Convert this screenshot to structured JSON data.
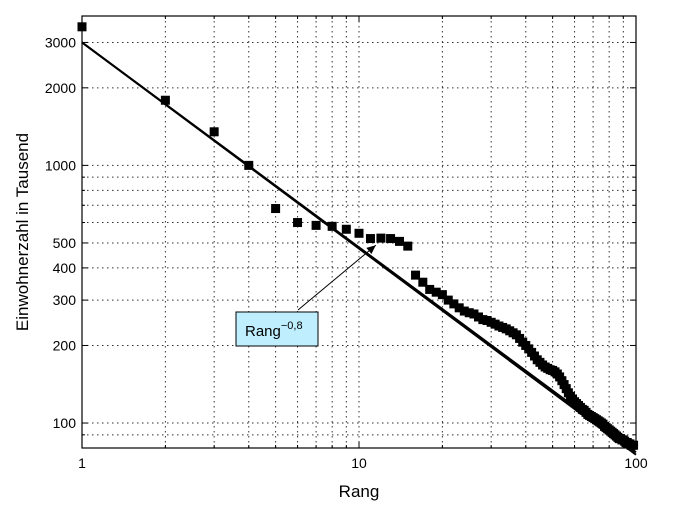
{
  "chart_data": {
    "type": "scatter",
    "title": "",
    "xlabel": "Rang",
    "ylabel": "Einwohnerzahl in Tausend",
    "x_scale": "log",
    "y_scale": "log",
    "xlim": [
      1,
      100
    ],
    "ylim": [
      80,
      3800
    ],
    "grid": true,
    "x_ticks": [
      1,
      10,
      100
    ],
    "x_tick_labels": [
      "1",
      "10",
      "100"
    ],
    "y_ticks": [
      100,
      200,
      300,
      400,
      500,
      1000,
      2000,
      3000
    ],
    "y_tick_labels": [
      "100",
      "200",
      "300",
      "400",
      "500",
      "1000",
      "2000",
      "3000"
    ],
    "series": [
      {
        "marker": "square",
        "color": "#000000",
        "points": [
          [
            1,
            3450
          ],
          [
            2,
            1790
          ],
          [
            3,
            1350
          ],
          [
            4,
            1000
          ],
          [
            5,
            680
          ],
          [
            6,
            600
          ],
          [
            7,
            585
          ],
          [
            8,
            580
          ],
          [
            9,
            565
          ],
          [
            10,
            545
          ],
          [
            11,
            520
          ],
          [
            12,
            522
          ],
          [
            13,
            520
          ],
          [
            14,
            507
          ],
          [
            15,
            486
          ],
          [
            16,
            375
          ],
          [
            17,
            352
          ],
          [
            18,
            330
          ],
          [
            19,
            322
          ],
          [
            20,
            315
          ],
          [
            21,
            300
          ],
          [
            22,
            290
          ],
          [
            23,
            280
          ],
          [
            24,
            272
          ],
          [
            25,
            268
          ],
          [
            26,
            265
          ],
          [
            27,
            258
          ],
          [
            28,
            252
          ],
          [
            29,
            250
          ],
          [
            30,
            246
          ],
          [
            31,
            242
          ],
          [
            32,
            238
          ],
          [
            33,
            235
          ],
          [
            34,
            232
          ],
          [
            35,
            228
          ],
          [
            36,
            224
          ],
          [
            37,
            220
          ],
          [
            38,
            213
          ],
          [
            39,
            206
          ],
          [
            40,
            200
          ],
          [
            41,
            194
          ],
          [
            42,
            188
          ],
          [
            43,
            182
          ],
          [
            44,
            176
          ],
          [
            45,
            172
          ],
          [
            46,
            168
          ],
          [
            47,
            165
          ],
          [
            48,
            163
          ],
          [
            49,
            161
          ],
          [
            50,
            160
          ],
          [
            51,
            158
          ],
          [
            52,
            155
          ],
          [
            53,
            151
          ],
          [
            54,
            146
          ],
          [
            55,
            141
          ],
          [
            56,
            136
          ],
          [
            57,
            131
          ],
          [
            58,
            127
          ],
          [
            59,
            124
          ],
          [
            60,
            121
          ],
          [
            61,
            119
          ],
          [
            62,
            117
          ],
          [
            63,
            115
          ],
          [
            64,
            113
          ],
          [
            65,
            112
          ],
          [
            66,
            110
          ],
          [
            67,
            108
          ],
          [
            68,
            107
          ],
          [
            69,
            106
          ],
          [
            70,
            105
          ],
          [
            71,
            104
          ],
          [
            72,
            103
          ],
          [
            73,
            102
          ],
          [
            74,
            101
          ],
          [
            75,
            100
          ],
          [
            76,
            99
          ],
          [
            77,
            97
          ],
          [
            78,
            96
          ],
          [
            79,
            95
          ],
          [
            80,
            94
          ],
          [
            81,
            93
          ],
          [
            82,
            92
          ],
          [
            83,
            91
          ],
          [
            84,
            90
          ],
          [
            85,
            89
          ],
          [
            86,
            88
          ],
          [
            87,
            87
          ],
          [
            88,
            87
          ],
          [
            89,
            86
          ],
          [
            90,
            86
          ],
          [
            91,
            85
          ],
          [
            92,
            84
          ],
          [
            93,
            84
          ],
          [
            94,
            83
          ],
          [
            95,
            83
          ],
          [
            96,
            82
          ],
          [
            97,
            82
          ],
          [
            98,
            82
          ]
        ]
      }
    ],
    "fit_lines": [
      {
        "formula": "3000 * Rang^-0.8",
        "coefficient": 3000,
        "exponent": -0.8,
        "x_range": [
          1,
          100
        ],
        "color": "#000000"
      },
      {
        "x_range": [
          1,
          100
        ],
        "y_range": [
          3000,
          77
        ],
        "color": "#000000"
      }
    ],
    "annotation": {
      "label_base": "Rang",
      "label_exponent": "−0,8",
      "box_color": "#bfefff",
      "arrow_target": [
        11.5,
        490
      ],
      "placement": "below the fit line, left of center"
    }
  }
}
